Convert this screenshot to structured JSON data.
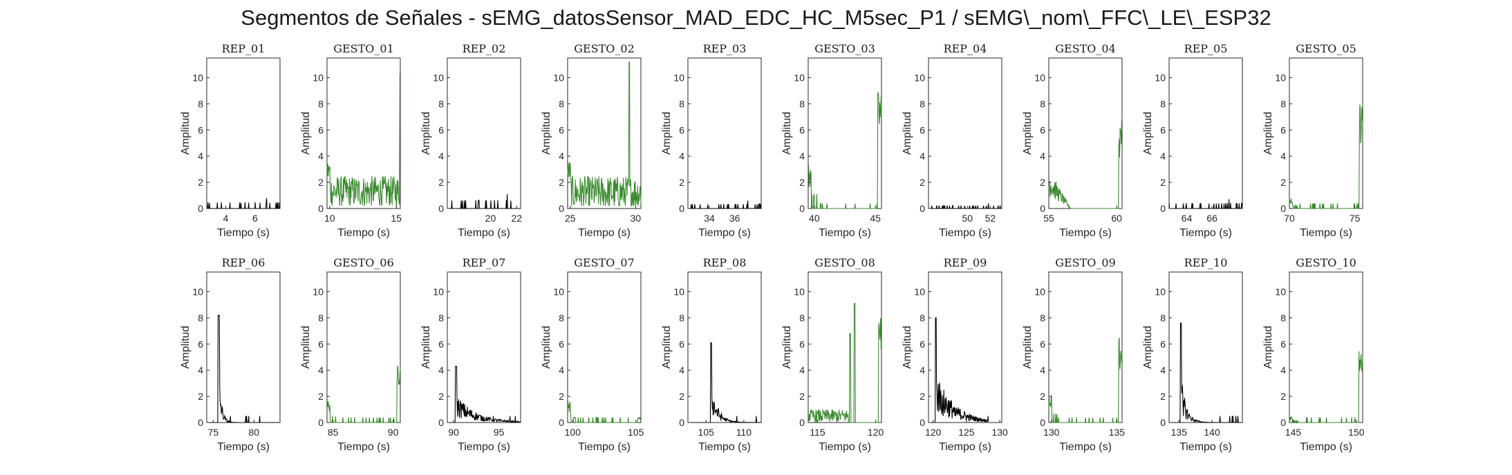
{
  "title": "Segmentos de Señales - sEMG_datosSensor_MAD_EDC_HC_M5sec_P1 / sEMG\\_nom\\_FFC\\_LE\\_ESP32",
  "colors": {
    "rep": "#000000",
    "gesto": "#3a8a2e",
    "axis": "#262626"
  },
  "chart_data": [
    {
      "type": "line",
      "title": "REP_01",
      "xlabel": "Tiempo (s)",
      "ylabel": "Amplitud",
      "color": "rep",
      "xlim": [
        2.7,
        7.7
      ],
      "ylim": [
        0,
        11.5
      ],
      "xticks": [
        4,
        6
      ],
      "yticks": [
        0,
        2,
        4,
        6,
        8,
        10
      ],
      "profile": "sparse",
      "peak": 0.8
    },
    {
      "type": "line",
      "title": "GESTO_01",
      "xlabel": "Tiempo (s)",
      "ylabel": "Amplitud",
      "color": "gesto",
      "xlim": [
        9.8,
        15.3
      ],
      "ylim": [
        0,
        11.5
      ],
      "xticks": [
        10,
        15
      ],
      "yticks": [
        0,
        2,
        4,
        6,
        8,
        10
      ],
      "profile": "noise",
      "base": 1.3,
      "spread": 1.2,
      "endSpike": 10.3
    },
    {
      "type": "line",
      "title": "REP_02",
      "xlabel": "Tiempo (s)",
      "ylabel": "Amplitud",
      "color": "rep",
      "xlim": [
        16.7,
        22.3
      ],
      "ylim": [
        0,
        11.5
      ],
      "xticks": [
        20,
        22
      ],
      "yticks": [
        0,
        2,
        4,
        6,
        8,
        10
      ],
      "profile": "sparse",
      "peak": 1.1
    },
    {
      "type": "line",
      "title": "GESTO_02",
      "xlabel": "Tiempo (s)",
      "ylabel": "Amplitud",
      "color": "gesto",
      "xlim": [
        24.8,
        30.4
      ],
      "ylim": [
        0,
        11.5
      ],
      "xticks": [
        25,
        30
      ],
      "yticks": [
        0,
        2,
        4,
        6,
        8,
        10
      ],
      "profile": "noise",
      "base": 1.2,
      "spread": 1.3,
      "midSpike": [
        29.5,
        11.2
      ]
    },
    {
      "type": "line",
      "title": "REP_03",
      "xlabel": "Tiempo (s)",
      "ylabel": "Amplitud",
      "color": "rep",
      "xlim": [
        32.3,
        38.1
      ],
      "ylim": [
        0,
        11.5
      ],
      "xticks": [
        34,
        36
      ],
      "yticks": [
        0,
        2,
        4,
        6,
        8,
        10
      ],
      "profile": "sparse",
      "peak": 0.6
    },
    {
      "type": "line",
      "title": "GESTO_03",
      "xlabel": "Tiempo (s)",
      "ylabel": "Amplitud",
      "color": "gesto",
      "xlim": [
        39.5,
        45.5
      ],
      "ylim": [
        0,
        11.5
      ],
      "xticks": [
        40,
        45
      ],
      "yticks": [
        0,
        2,
        4,
        6,
        8,
        10
      ],
      "profile": "startend",
      "startPeak": 3.8,
      "endSpike": 9.0
    },
    {
      "type": "line",
      "title": "REP_04",
      "xlabel": "Tiempo (s)",
      "ylabel": "Amplitud",
      "color": "rep",
      "xlim": [
        46.6,
        53.0
      ],
      "ylim": [
        0,
        11.5
      ],
      "xticks": [
        50,
        52
      ],
      "yticks": [
        0,
        2,
        4,
        6,
        8,
        10
      ],
      "profile": "sparse",
      "peak": 0.4
    },
    {
      "type": "line",
      "title": "GESTO_04",
      "xlabel": "Tiempo (s)",
      "ylabel": "Amplitud",
      "color": "gesto",
      "xlim": [
        55.0,
        60.4
      ],
      "ylim": [
        0,
        11.5
      ],
      "xticks": [
        55,
        60
      ],
      "yticks": [
        0,
        2,
        4,
        6,
        8,
        10
      ],
      "profile": "burstend",
      "startPeak": 3.1,
      "burstLen": 0.3,
      "endSpike": 7.3
    },
    {
      "type": "line",
      "title": "REP_05",
      "xlabel": "Tiempo (s)",
      "ylabel": "Amplitud",
      "color": "rep",
      "xlim": [
        62.6,
        68.4
      ],
      "ylim": [
        0,
        11.5
      ],
      "xticks": [
        64,
        66
      ],
      "yticks": [
        0,
        2,
        4,
        6,
        8,
        10
      ],
      "profile": "sparse",
      "peak": 0.7
    },
    {
      "type": "line",
      "title": "GESTO_05",
      "xlabel": "Tiempo (s)",
      "ylabel": "Amplitud",
      "color": "gesto",
      "xlim": [
        70.0,
        75.6
      ],
      "ylim": [
        0,
        11.5
      ],
      "xticks": [
        70,
        75
      ],
      "yticks": [
        0,
        2,
        4,
        6,
        8,
        10
      ],
      "profile": "startend",
      "startPeak": 0.9,
      "endSpike": 8.2
    },
    {
      "type": "line",
      "title": "REP_06",
      "xlabel": "Tiempo (s)",
      "ylabel": "Amplitud",
      "color": "rep",
      "xlim": [
        74.2,
        83.2
      ],
      "ylim": [
        0,
        11.5
      ],
      "xticks": [
        75,
        80
      ],
      "yticks": [
        0,
        2,
        4,
        6,
        8,
        10
      ],
      "profile": "burst",
      "peakX": 75.7,
      "peak": 8.2,
      "decay": 0.35
    },
    {
      "type": "line",
      "title": "GESTO_06",
      "xlabel": "Tiempo (s)",
      "ylabel": "Amplitud",
      "color": "gesto",
      "xlim": [
        84.5,
        90.6
      ],
      "ylim": [
        0,
        11.5
      ],
      "xticks": [
        85,
        90
      ],
      "yticks": [
        0,
        2,
        4,
        6,
        8,
        10
      ],
      "profile": "startend",
      "startPeak": 1.9,
      "endSpike": 4.5
    },
    {
      "type": "line",
      "title": "REP_07",
      "xlabel": "Tiempo (s)",
      "ylabel": "Amplitud",
      "color": "rep",
      "xlim": [
        89.3,
        97.4
      ],
      "ylim": [
        0,
        11.5
      ],
      "xticks": [
        90,
        95
      ],
      "yticks": [
        0,
        2,
        4,
        6,
        8,
        10
      ],
      "profile": "burst",
      "peakX": 90.3,
      "peak": 4.3,
      "decay": 2.2
    },
    {
      "type": "line",
      "title": "GESTO_07",
      "xlabel": "Tiempo (s)",
      "ylabel": "Amplitud",
      "color": "gesto",
      "xlim": [
        99.6,
        105.4
      ],
      "ylim": [
        0,
        11.5
      ],
      "xticks": [
        100,
        105
      ],
      "yticks": [
        0,
        2,
        4,
        6,
        8,
        10
      ],
      "profile": "startend",
      "startPeak": 1.6,
      "endSpike": 0.4
    },
    {
      "type": "line",
      "title": "REP_08",
      "xlabel": "Tiempo (s)",
      "ylabel": "Amplitud",
      "color": "rep",
      "xlim": [
        102.6,
        112.3
      ],
      "ylim": [
        0,
        11.5
      ],
      "xticks": [
        105,
        110
      ],
      "yticks": [
        0,
        2,
        4,
        6,
        8,
        10
      ],
      "profile": "burst",
      "peakX": 105.7,
      "peak": 6.1,
      "decay": 0.9
    },
    {
      "type": "line",
      "title": "GESTO_08",
      "xlabel": "Tiempo (s)",
      "ylabel": "Amplitud",
      "color": "gesto",
      "xlim": [
        114.2,
        120.5
      ],
      "ylim": [
        0,
        11.5
      ],
      "xticks": [
        115,
        120
      ],
      "yticks": [
        0,
        2,
        4,
        6,
        8,
        10
      ],
      "profile": "gesto8",
      "endSpike": 8.0
    },
    {
      "type": "line",
      "title": "REP_09",
      "xlabel": "Tiempo (s)",
      "ylabel": "Amplitud",
      "color": "rep",
      "xlim": [
        119.3,
        130.3
      ],
      "ylim": [
        0,
        11.5
      ],
      "xticks": [
        120,
        125,
        130
      ],
      "yticks": [
        0,
        2,
        4,
        6,
        8,
        10
      ],
      "profile": "burst",
      "peakX": 120.4,
      "peak": 8.0,
      "decay": 2.8,
      "end": 128.3
    },
    {
      "type": "line",
      "title": "GESTO_09",
      "xlabel": "Tiempo (s)",
      "ylabel": "Amplitud",
      "color": "gesto",
      "xlim": [
        129.8,
        135.4
      ],
      "ylim": [
        0,
        11.5
      ],
      "xticks": [
        130,
        135
      ],
      "yticks": [
        0,
        2,
        4,
        6,
        8,
        10
      ],
      "profile": "startend",
      "startPeak": 2.3,
      "endSpike": 6.5
    },
    {
      "type": "line",
      "title": "REP_10",
      "xlabel": "Tiempo (s)",
      "ylabel": "Amplitud",
      "color": "rep",
      "xlim": [
        133.5,
        144.6
      ],
      "ylim": [
        0,
        11.5
      ],
      "xticks": [
        135,
        140
      ],
      "yticks": [
        0,
        2,
        4,
        6,
        8,
        10
      ],
      "profile": "burst",
      "peakX": 135.3,
      "peak": 7.6,
      "decay": 0.8
    },
    {
      "type": "line",
      "title": "GESTO_10",
      "xlabel": "Tiempo (s)",
      "ylabel": "Amplitud",
      "color": "gesto",
      "xlim": [
        144.7,
        150.5
      ],
      "ylim": [
        0,
        11.5
      ],
      "xticks": [
        145,
        150
      ],
      "yticks": [
        0,
        2,
        4,
        6,
        8,
        10
      ],
      "profile": "startend",
      "startPeak": 0.5,
      "endSpike": 5.5
    }
  ]
}
